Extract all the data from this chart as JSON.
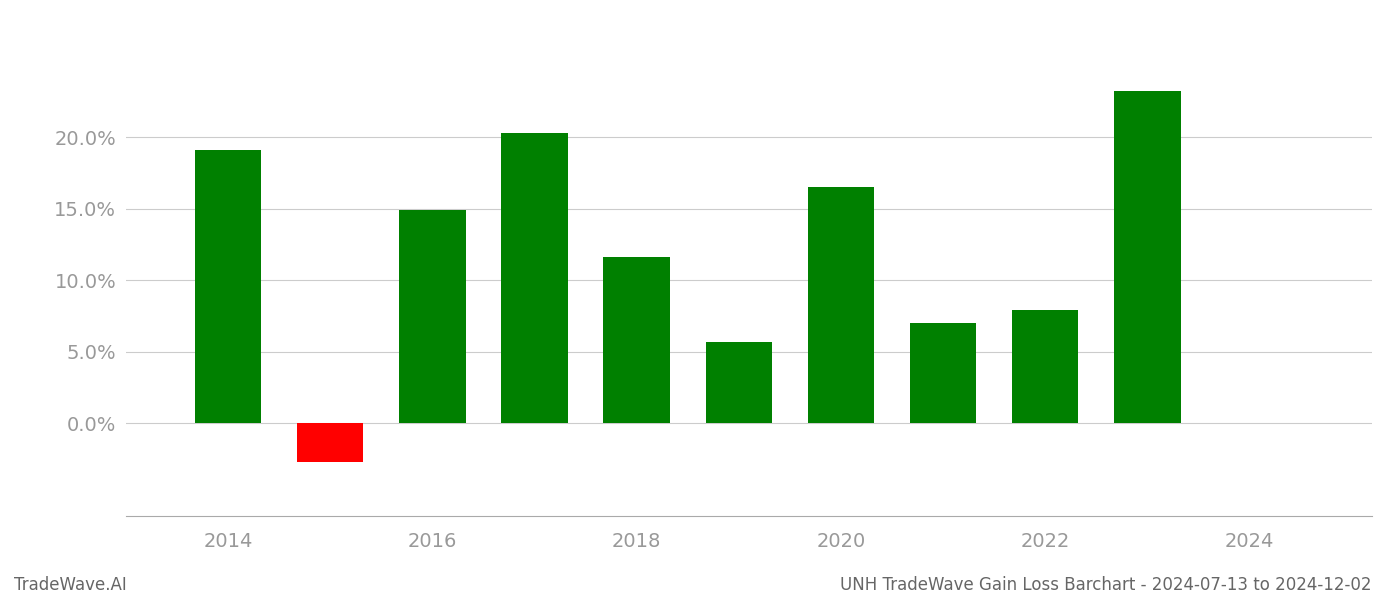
{
  "years": [
    2014,
    2015,
    2016,
    2017,
    2018,
    2019,
    2020,
    2021,
    2022,
    2023
  ],
  "values": [
    0.191,
    -0.027,
    0.149,
    0.203,
    0.116,
    0.057,
    0.165,
    0.07,
    0.079,
    0.232
  ],
  "colors": [
    "#008000",
    "#ff0000",
    "#008000",
    "#008000",
    "#008000",
    "#008000",
    "#008000",
    "#008000",
    "#008000",
    "#008000"
  ],
  "title": "UNH TradeWave Gain Loss Barchart - 2024-07-13 to 2024-12-02",
  "watermark": "TradeWave.AI",
  "ylim_min": -0.065,
  "ylim_max": 0.275,
  "ytick_vals": [
    0.0,
    0.05,
    0.1,
    0.15,
    0.2
  ],
  "xtick_vals": [
    2014,
    2016,
    2018,
    2020,
    2022,
    2024
  ],
  "xlim_min": 2013.0,
  "xlim_max": 2025.2,
  "background_color": "#ffffff",
  "grid_color": "#cccccc",
  "bar_width": 0.65,
  "title_fontsize": 12,
  "tick_fontsize": 14,
  "watermark_fontsize": 12,
  "tick_color": "#999999",
  "spine_color": "#aaaaaa"
}
